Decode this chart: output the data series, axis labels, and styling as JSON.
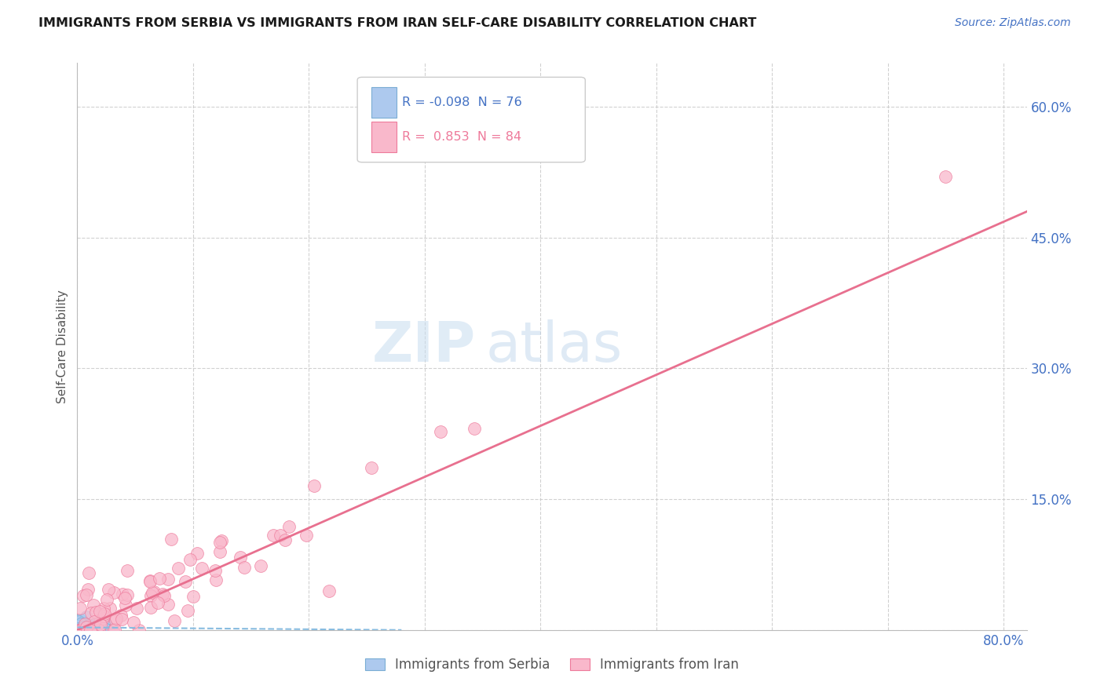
{
  "title": "IMMIGRANTS FROM SERBIA VS IMMIGRANTS FROM IRAN SELF-CARE DISABILITY CORRELATION CHART",
  "source": "Source: ZipAtlas.com",
  "ylabel": "Self-Care Disability",
  "xlim": [
    0.0,
    0.82
  ],
  "ylim": [
    0.0,
    0.65
  ],
  "serbia_color": "#adc9ee",
  "serbia_edge": "#7aadd4",
  "iran_color": "#f9b8cb",
  "iran_edge": "#ee7a9b",
  "serbia_R": -0.098,
  "serbia_N": 76,
  "iran_R": 0.853,
  "iran_N": 84,
  "serbia_line_color": "#88bce0",
  "iran_line_color": "#e8708f",
  "watermark_zip": "ZIP",
  "watermark_atlas": "atlas",
  "legend_serbia_label": "Immigrants from Serbia",
  "legend_iran_label": "Immigrants from Iran",
  "title_color": "#1a1a1a",
  "axis_color": "#4472C4",
  "grid_color": "#cccccc",
  "background_color": "#ffffff"
}
